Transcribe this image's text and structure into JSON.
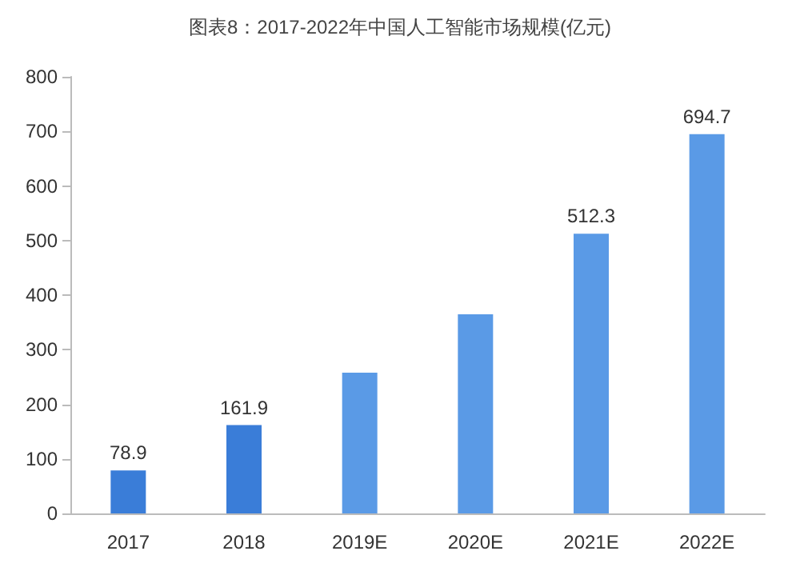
{
  "chart_data": {
    "type": "bar",
    "title": "图表8：2017-2022年中国人工智能市场规模(亿元)",
    "categories": [
      "2017",
      "2018",
      "2019E",
      "2020E",
      "2021E",
      "2022E"
    ],
    "values": [
      78.9,
      161.9,
      258,
      365,
      512.3,
      694.7
    ],
    "colors": [
      "#3a7dd8",
      "#3a7dd8",
      "#5a9ae6",
      "#5a9ae6",
      "#5a9ae6",
      "#5a9ae6"
    ],
    "value_labels": [
      "78.9",
      "161.9",
      null,
      null,
      "512.3",
      "694.7"
    ],
    "ylim": [
      0,
      800
    ],
    "yticks": [
      0,
      100,
      200,
      300,
      400,
      500,
      600,
      700,
      800
    ],
    "grid": false
  }
}
